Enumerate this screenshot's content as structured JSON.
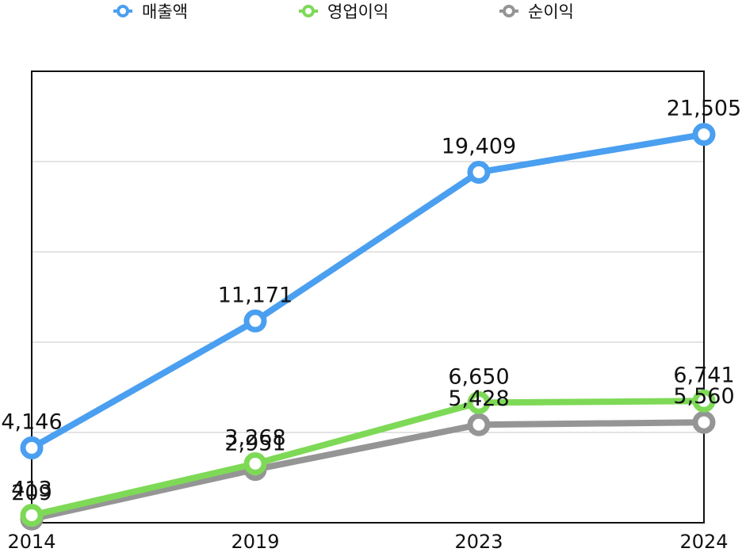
{
  "chart_data": {
    "type": "line",
    "categories": [
      "2014",
      "2019",
      "2023",
      "2024"
    ],
    "series": [
      {
        "name": "매출액",
        "color": "#4a9ff0",
        "values": [
          4146,
          11171,
          19409,
          21505
        ],
        "labels": [
          "4,146",
          "11,171",
          "19,409",
          "21,505"
        ]
      },
      {
        "name": "영업이익",
        "color": "#7ed957",
        "values": [
          413,
          3268,
          6650,
          6741
        ],
        "labels": [
          "413",
          "3,268",
          "6,650",
          "6,741"
        ]
      },
      {
        "name": "순이익",
        "color": "#959595",
        "values": [
          209,
          2951,
          5428,
          5560
        ],
        "labels": [
          "209",
          "2,951",
          "5,428",
          "5,560"
        ]
      }
    ],
    "ylim": [
      0,
      25000
    ],
    "grid": "horizontal",
    "legend_position": "top"
  }
}
